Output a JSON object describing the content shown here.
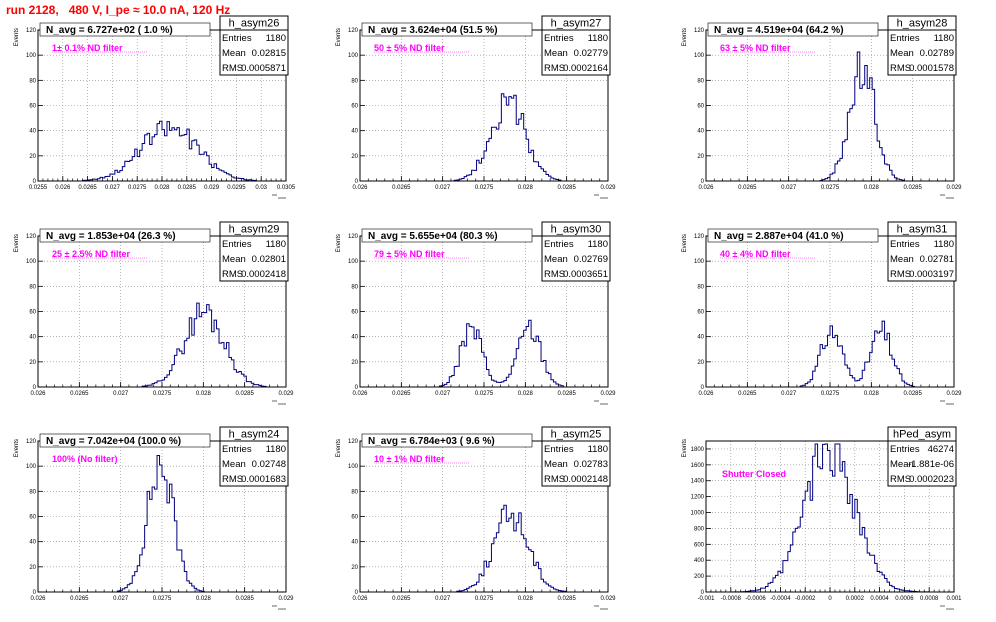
{
  "title": "run 2128,   480 V, I_pe ≈ 10.0 nA, 120 Hz",
  "colors": {
    "title": "#ff0000",
    "histogram": "#000080",
    "annotation": "#ff00ff",
    "grid": "#888888",
    "text": "#000000"
  },
  "stat_labels": {
    "entries": "Entries",
    "mean": "Mean",
    "rms": "RMS"
  },
  "chart_data": [
    {
      "type": "histogram",
      "name": "h_asym26",
      "ylabel": "Events",
      "xlabel": "",
      "xlim": [
        0.0255,
        0.0305
      ],
      "ylim": [
        0,
        120
      ],
      "xticks": [
        0.0255,
        0.026,
        0.0265,
        0.027,
        0.0275,
        0.028,
        0.0285,
        0.029,
        0.0295,
        0.03,
        0.0305
      ],
      "xtick_labels": [
        "0.0255",
        "0.026",
        "0.0265",
        "0.027",
        "0.0275",
        "0.028",
        "0.0285",
        "0.029",
        "0.0295",
        "0.03",
        "0.0305"
      ],
      "yticks": [
        20,
        40,
        60,
        80,
        100,
        120
      ],
      "nbins": 100,
      "stats": {
        "entries": "1180",
        "mean": "0.02815",
        "rms": "0.0005871"
      },
      "navg": "N_avg = 6.727e+02 ( 1.0 %)",
      "filter": "1± 0.1% ND filter",
      "shape": {
        "peaks": [
          {
            "mu": 0.02815,
            "sigma": 0.00058,
            "height": 42
          }
        ],
        "seed": 26
      }
    },
    {
      "type": "histogram",
      "name": "h_asym27",
      "ylabel": "Events",
      "xlabel": "",
      "xlim": [
        0.026,
        0.029
      ],
      "ylim": [
        0,
        120
      ],
      "xticks": [
        0.026,
        0.0265,
        0.027,
        0.0275,
        0.028,
        0.0285,
        0.029
      ],
      "xtick_labels": [
        "0.026",
        "0.0265",
        "0.027",
        "0.0275",
        "0.028",
        "0.0285",
        "0.029"
      ],
      "yticks": [
        20,
        40,
        60,
        80,
        100,
        120
      ],
      "nbins": 100,
      "stats": {
        "entries": "1180",
        "mean": "0.02779",
        "rms": "0.0002164"
      },
      "navg": "N_avg = 3.624e+04 (51.5 %)",
      "filter": "50 ± 5% ND filter",
      "shape": {
        "peaks": [
          {
            "mu": 0.02779,
            "sigma": 0.00021,
            "height": 62
          }
        ],
        "seed": 27
      }
    },
    {
      "type": "histogram",
      "name": "h_asym28",
      "ylabel": "Events",
      "xlabel": "",
      "xlim": [
        0.026,
        0.029
      ],
      "ylim": [
        0,
        120
      ],
      "xticks": [
        0.026,
        0.0265,
        0.027,
        0.0275,
        0.028,
        0.0285,
        0.029
      ],
      "xtick_labels": [
        "0.026",
        "0.0265",
        "0.027",
        "0.0275",
        "0.028",
        "0.0285",
        "0.029"
      ],
      "yticks": [
        20,
        40,
        60,
        80,
        100,
        120
      ],
      "nbins": 100,
      "stats": {
        "entries": "1180",
        "mean": "0.02789",
        "rms": "0.0001578"
      },
      "navg": "N_avg = 4.519e+04 (64.2 %)",
      "filter": "63 ± 5% ND filter",
      "shape": {
        "peaks": [
          {
            "mu": 0.02789,
            "sigma": 0.000155,
            "height": 88
          }
        ],
        "seed": 28
      }
    },
    {
      "type": "histogram",
      "name": "h_asym29",
      "ylabel": "Events",
      "xlabel": "",
      "xlim": [
        0.026,
        0.029
      ],
      "ylim": [
        0,
        120
      ],
      "xticks": [
        0.026,
        0.0265,
        0.027,
        0.0275,
        0.028,
        0.0285,
        0.029
      ],
      "xtick_labels": [
        "0.026",
        "0.0265",
        "0.027",
        "0.0275",
        "0.028",
        "0.0285",
        "0.029"
      ],
      "yticks": [
        20,
        40,
        60,
        80,
        100,
        120
      ],
      "nbins": 100,
      "stats": {
        "entries": "1180",
        "mean": "0.02801",
        "rms": "0.0002418"
      },
      "navg": "N_avg = 1.853e+04 (26.3 %)",
      "filter": "25 ± 2.5% ND filter",
      "shape": {
        "peaks": [
          {
            "mu": 0.02801,
            "sigma": 0.00024,
            "height": 60
          }
        ],
        "seed": 29
      }
    },
    {
      "type": "histogram",
      "name": "h_asym30",
      "ylabel": "Events",
      "xlabel": "",
      "xlim": [
        0.026,
        0.029
      ],
      "ylim": [
        0,
        120
      ],
      "xticks": [
        0.026,
        0.0265,
        0.027,
        0.0275,
        0.028,
        0.0285,
        0.029
      ],
      "xtick_labels": [
        "0.026",
        "0.0265",
        "0.027",
        "0.0275",
        "0.028",
        "0.0285",
        "0.029"
      ],
      "yticks": [
        20,
        40,
        60,
        80,
        100,
        120
      ],
      "nbins": 100,
      "stats": {
        "entries": "1180",
        "mean": "0.02769",
        "rms": "0.0003651"
      },
      "navg": "N_avg = 5.655e+04 (80.3 %)",
      "filter": "79 ± 5% ND filter",
      "shape": {
        "peaks": [
          {
            "mu": 0.02735,
            "sigma": 0.00013,
            "height": 46
          },
          {
            "mu": 0.02805,
            "sigma": 0.00014,
            "height": 46
          }
        ],
        "seed": 30
      }
    },
    {
      "type": "histogram",
      "name": "h_asym31",
      "ylabel": "Events",
      "xlabel": "",
      "xlim": [
        0.026,
        0.029
      ],
      "ylim": [
        0,
        120
      ],
      "xticks": [
        0.026,
        0.0265,
        0.027,
        0.0275,
        0.028,
        0.0285,
        0.029
      ],
      "xtick_labels": [
        "0.026",
        "0.0265",
        "0.027",
        "0.0275",
        "0.028",
        "0.0285",
        "0.029"
      ],
      "yticks": [
        20,
        40,
        60,
        80,
        100,
        120
      ],
      "nbins": 100,
      "stats": {
        "entries": "1180",
        "mean": "0.02781",
        "rms": "0.0003197"
      },
      "navg": "N_avg = 2.887e+04 (41.0 %)",
      "filter": "40 ± 4% ND filter",
      "shape": {
        "peaks": [
          {
            "mu": 0.02752,
            "sigma": 0.00013,
            "height": 44
          },
          {
            "mu": 0.02812,
            "sigma": 0.00013,
            "height": 44
          }
        ],
        "seed": 31
      }
    },
    {
      "type": "histogram",
      "name": "h_asym24",
      "ylabel": "Events",
      "xlabel": "",
      "xlim": [
        0.026,
        0.029
      ],
      "ylim": [
        0,
        120
      ],
      "xticks": [
        0.026,
        0.0265,
        0.027,
        0.0275,
        0.028,
        0.0285,
        0.029
      ],
      "xtick_labels": [
        "0.026",
        "0.0265",
        "0.027",
        "0.0275",
        "0.028",
        "0.0285",
        "0.029"
      ],
      "yticks": [
        20,
        40,
        60,
        80,
        100,
        120
      ],
      "nbins": 100,
      "stats": {
        "entries": "1180",
        "mean": "0.02748",
        "rms": "0.0001683"
      },
      "navg": "N_avg = 7.042e+04 (100.0 %)",
      "filter": "100% (No filter)",
      "shape": {
        "peaks": [
          {
            "mu": 0.02748,
            "sigma": 0.00016,
            "height": 100
          }
        ],
        "seed": 24
      }
    },
    {
      "type": "histogram",
      "name": "h_asym25",
      "ylabel": "Events",
      "xlabel": "",
      "xlim": [
        0.026,
        0.029
      ],
      "ylim": [
        0,
        120
      ],
      "xticks": [
        0.026,
        0.0265,
        0.027,
        0.0275,
        0.028,
        0.0285,
        0.029
      ],
      "xtick_labels": [
        "0.026",
        "0.0265",
        "0.027",
        "0.0275",
        "0.028",
        "0.0285",
        "0.029"
      ],
      "yticks": [
        20,
        40,
        60,
        80,
        100,
        120
      ],
      "nbins": 100,
      "stats": {
        "entries": "1180",
        "mean": "0.02783",
        "rms": "0.0002148"
      },
      "navg": "N_avg = 6.784e+03 ( 9.6 %)",
      "filter": "10 ± 1% ND filter",
      "shape": {
        "peaks": [
          {
            "mu": 0.02783,
            "sigma": 0.00021,
            "height": 62
          }
        ],
        "seed": 25
      }
    },
    {
      "type": "histogram",
      "name": "hPed_asym",
      "ylabel": "Events",
      "xlabel": "",
      "xlim": [
        -0.001,
        0.001
      ],
      "ylim": [
        0,
        1900
      ],
      "xticks": [
        -0.001,
        -0.0008,
        -0.0006,
        -0.0004,
        -0.0002,
        0,
        0.0002,
        0.0004,
        0.0006,
        0.0008,
        0.001
      ],
      "xtick_labels": [
        "-0.001",
        "-0.0008",
        "-0.0006",
        "-0.0004",
        "-0.0002",
        "0",
        "0.0002",
        "0.0004",
        "0.0006",
        "0.0008",
        "0.001"
      ],
      "yticks": [
        200,
        400,
        600,
        800,
        1000,
        1200,
        1400,
        1600,
        1800
      ],
      "nbins": 100,
      "stats": {
        "entries": "46274",
        "mean": "-1.881e-06",
        "rms": "0.0002023"
      },
      "navg": "",
      "filter": "Shutter Closed",
      "shape": {
        "peaks": [
          {
            "mu": 0.0,
            "sigma": 0.0002,
            "height": 1840
          }
        ],
        "seed": 99
      }
    }
  ]
}
